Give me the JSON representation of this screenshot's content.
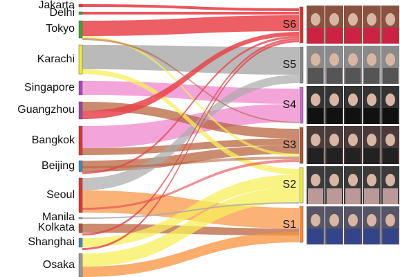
{
  "sources": [
    "Jakarta",
    "Delhi",
    "Tokyo",
    "Karachi",
    "Singapore",
    "Guangzhou",
    "Bangkok",
    "Beijing",
    "Seoul",
    "Manila",
    "Kolkata",
    "Shanghai",
    "Osaka"
  ],
  "targets": [
    "S6",
    "S5",
    "S4",
    "S3",
    "S2",
    "S1"
  ]
}
